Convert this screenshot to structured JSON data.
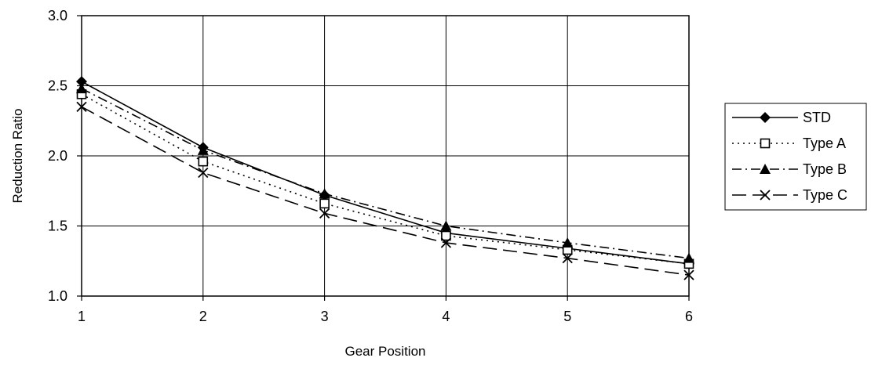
{
  "chart_data": {
    "type": "line",
    "title": "",
    "xlabel": "Gear Position",
    "ylabel": "Reduction Ratio",
    "x": [
      1,
      2,
      3,
      4,
      5,
      6
    ],
    "xlim": [
      1,
      6
    ],
    "ylim": [
      1.0,
      3.0
    ],
    "y_ticks": [
      1.0,
      1.5,
      2.0,
      2.5,
      3.0
    ],
    "y_tick_labels": [
      "1.0",
      "1.5",
      "2.0",
      "2.5",
      "3.0"
    ],
    "x_tick_labels": [
      "1",
      "2",
      "3",
      "4",
      "5",
      "6"
    ],
    "grid": true,
    "legend_position": "right",
    "series": [
      {
        "name": "STD",
        "values": [
          2.53,
          2.06,
          1.72,
          1.45,
          1.34,
          1.23
        ],
        "marker": "diamond",
        "dash": "solid"
      },
      {
        "name": "Type A",
        "values": [
          2.44,
          1.96,
          1.66,
          1.43,
          1.33,
          1.23
        ],
        "marker": "square-open",
        "dash": "dotted"
      },
      {
        "name": "Type B",
        "values": [
          2.48,
          2.04,
          1.73,
          1.5,
          1.38,
          1.27
        ],
        "marker": "triangle",
        "dash": "dash-dot"
      },
      {
        "name": "Type C",
        "values": [
          2.35,
          1.88,
          1.59,
          1.38,
          1.27,
          1.15
        ],
        "marker": "x",
        "dash": "long-dash"
      }
    ]
  }
}
